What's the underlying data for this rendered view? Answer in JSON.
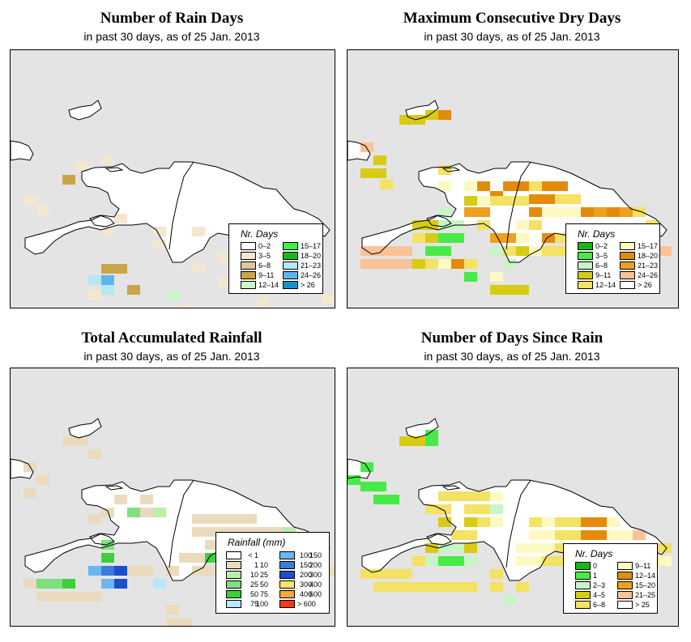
{
  "colors": {
    "water": "#e4e4e4",
    "land": "#ffffff",
    "outline": "#000000"
  },
  "panels": [
    {
      "id": "rain-days",
      "title": "Number of Rain Days",
      "subtitle": "in past 30 days, as of  25 Jan. 2013",
      "legend": {
        "title": "Nr. Days",
        "items": [
          {
            "label": "0–2",
            "color": "#ffffff"
          },
          {
            "label": "3–5",
            "color": "#f3e7cf"
          },
          {
            "label": "6–8",
            "color": "#dfc79b"
          },
          {
            "label": "9–11",
            "color": "#c8a548"
          },
          {
            "label": "12–14",
            "color": "#ccf5cc"
          },
          {
            "label": "15–17",
            "color": "#3ef04a"
          },
          {
            "label": "18–20",
            "color": "#18b71e"
          },
          {
            "label": "21–23",
            "color": "#b6e7f4"
          },
          {
            "label": "24–26",
            "color": "#5cb6ee"
          },
          {
            "label": "> 26",
            "color": "#1793cc"
          }
        ]
      }
    },
    {
      "id": "dry-days",
      "title": "Maximum Consecutive Dry Days",
      "subtitle": "in past 30 days, as of  25 Jan. 2013",
      "legend": {
        "title": "Nr. Days",
        "items": [
          {
            "label": "0–2",
            "color": "#14b814"
          },
          {
            "label": "3–5",
            "color": "#48ea48"
          },
          {
            "label": "6–8",
            "color": "#c8f5c8"
          },
          {
            "label": "9–11",
            "color": "#d8cb14"
          },
          {
            "label": "12–14",
            "color": "#f3e263"
          },
          {
            "label": "15–17",
            "color": "#fdf9c3"
          },
          {
            "label": "18–20",
            "color": "#e38c0c"
          },
          {
            "label": "21–23",
            "color": "#eea020"
          },
          {
            "label": "24–26",
            "color": "#fac297"
          },
          {
            "label": "> 26",
            "color": "#ffffff"
          }
        ]
      }
    },
    {
      "id": "rainfall",
      "title": "Total Accumulated Rainfall",
      "subtitle": "in past 30 days, as of  25 Jan. 2013",
      "legend": {
        "title": "Rainfall (mm)",
        "items": [
          {
            "a": "< 1",
            "b": "",
            "color": "#ffffff"
          },
          {
            "a": "1",
            "b": "10",
            "color": "#eadbbe"
          },
          {
            "a": "10",
            "b": "25",
            "color": "#b8f0a8"
          },
          {
            "a": "25",
            "b": "50",
            "color": "#7ee07e"
          },
          {
            "a": "50",
            "b": "75",
            "color": "#3cd03c"
          },
          {
            "a": "75",
            "b": "100",
            "color": "#b6e8f6"
          },
          {
            "a": "100",
            "b": "150",
            "color": "#6ab6f2"
          },
          {
            "a": "150",
            "b": "200",
            "color": "#3b7be0"
          },
          {
            "a": "200",
            "b": "300",
            "color": "#1d4fc8"
          },
          {
            "a": "300",
            "b": "400",
            "color": "#fce36c"
          },
          {
            "a": "400",
            "b": "600",
            "color": "#f7a83b"
          },
          {
            "a": "> 600",
            "b": "",
            "color": "#f43c14"
          }
        ]
      }
    },
    {
      "id": "days-since",
      "title": "Number of Days Since Rain",
      "subtitle": "in past 30 days, as of  25 Jan. 2013",
      "legend": {
        "title": "Nr. Days",
        "items": [
          {
            "label": "0",
            "color": "#14b814"
          },
          {
            "label": "1",
            "color": "#48ea48"
          },
          {
            "label": "2–3",
            "color": "#c8f5c8"
          },
          {
            "label": "4–5",
            "color": "#d8cb14"
          },
          {
            "label": "6–8",
            "color": "#f3e263"
          },
          {
            "label": "9–11",
            "color": "#fdf9c3"
          },
          {
            "label": "12–14",
            "color": "#e38c0c"
          },
          {
            "label": "15–20",
            "color": "#eea020"
          },
          {
            "label": "21–25",
            "color": "#fac297"
          },
          {
            "label": "> 25",
            "color": "#ffffff"
          }
        ]
      }
    }
  ]
}
